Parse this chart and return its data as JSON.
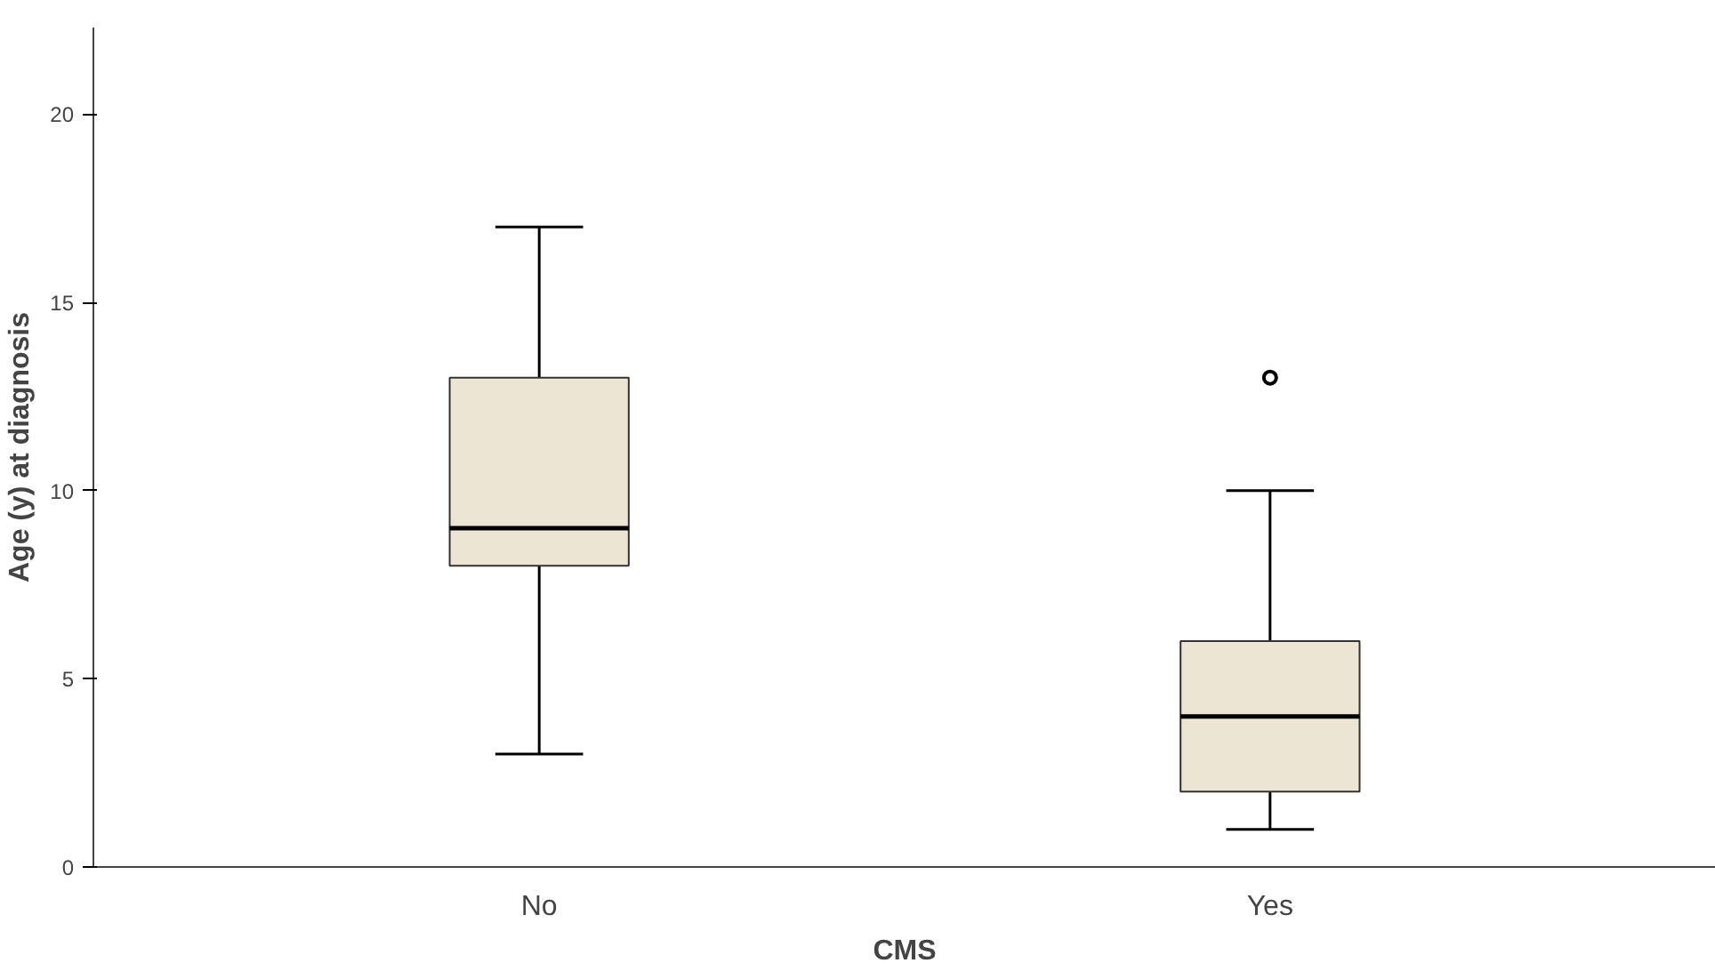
{
  "chart_data": {
    "type": "box",
    "xlabel": "CMS",
    "ylabel": "Age (y) at diagnosis",
    "categories": [
      "No",
      "Yes"
    ],
    "series": [
      {
        "color": "#ede5d3",
        "boxes": [
          {
            "low": 3,
            "q1": 8,
            "median": 9,
            "q3": 13,
            "high": 17
          },
          {
            "low": 1,
            "q1": 2,
            "median": 4,
            "q3": 6,
            "high": 10,
            "outliers": [
              13
            ]
          }
        ]
      }
    ],
    "ylim": [
      0,
      22.3
    ],
    "yticks": [
      0,
      5,
      10,
      15,
      20
    ],
    "marker": "circle"
  }
}
